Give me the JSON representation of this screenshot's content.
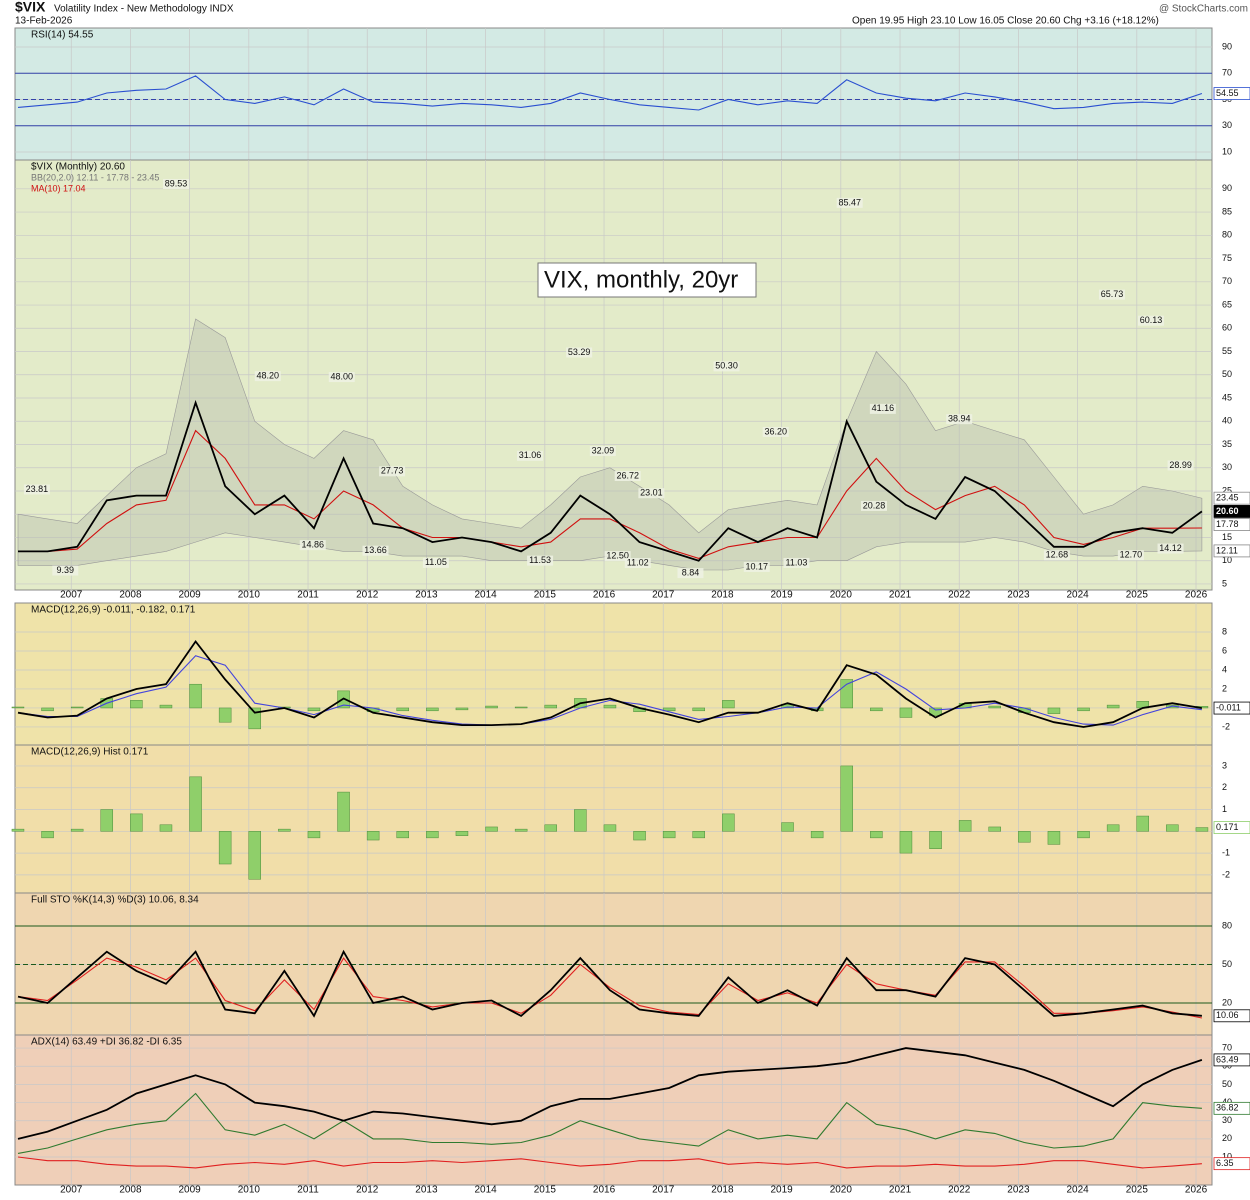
{
  "header": {
    "symbol": "$VIX",
    "name": "Volatility Index - New Methodology INDX",
    "date": "13-Feb-2026",
    "ohlc": "Open 19.95 High 23.10 Low 16.05 Close 20.60 Chg +3.16 (+18.12%)",
    "credit": "@ StockCharts.com"
  },
  "chart_data": [
    {
      "type": "line",
      "title": "RSI(14) 54.55",
      "background": "#d3eae4",
      "xlim": [
        2006.05,
        2026.27
      ],
      "ylim": [
        3.9,
        104.5
      ],
      "yticks": [
        10,
        30,
        50,
        70,
        90
      ],
      "ref_lines": [
        30,
        50,
        70
      ],
      "x": [
        2006.1,
        2006.6,
        2007.1,
        2007.6,
        2008.1,
        2008.6,
        2009.1,
        2009.6,
        2010.1,
        2010.6,
        2011.1,
        2011.6,
        2012.1,
        2012.6,
        2013.1,
        2013.6,
        2014.1,
        2014.6,
        2015.1,
        2015.6,
        2016.1,
        2016.6,
        2017.1,
        2017.6,
        2018.1,
        2018.6,
        2019.1,
        2019.6,
        2020.1,
        2020.6,
        2021.1,
        2021.6,
        2022.1,
        2022.6,
        2023.1,
        2023.6,
        2024.1,
        2024.6,
        2025.1,
        2025.6,
        2026.1
      ],
      "series": [
        {
          "color": "#2a4fd0",
          "tag": "54.55",
          "values": [
            44,
            46,
            48,
            55,
            57,
            58,
            68,
            50,
            47,
            52,
            46,
            58,
            48,
            47,
            45,
            47,
            46,
            44,
            47,
            55,
            50,
            46,
            44,
            42,
            50,
            46,
            49,
            47,
            65,
            55,
            51,
            49,
            55,
            52,
            48,
            43,
            44,
            47,
            48,
            47,
            54.55
          ]
        }
      ]
    },
    {
      "type": "line",
      "title": "$VIX (Monthly) 20.60",
      "annotation": "VIX, monthly, 20yr",
      "background": "#e3ebc9",
      "xlim": [
        2006.05,
        2026.27
      ],
      "ylim": [
        3.7,
        96.2
      ],
      "yticks": [
        5,
        10,
        15,
        20,
        25,
        30,
        35,
        40,
        45,
        50,
        55,
        60,
        65,
        70,
        75,
        80,
        85,
        90
      ],
      "xticks": [
        2007,
        2008,
        2009,
        2010,
        2011,
        2012,
        2013,
        2014,
        2015,
        2016,
        2017,
        2018,
        2019,
        2020,
        2021,
        2022,
        2023,
        2024,
        2025,
        2026
      ],
      "tags": [
        {
          "value": 17.78,
          "label": "17.78"
        }
      ],
      "x": [
        2006.1,
        2006.6,
        2007.1,
        2007.6,
        2008.1,
        2008.6,
        2009.1,
        2009.6,
        2010.1,
        2010.6,
        2011.1,
        2011.6,
        2012.1,
        2012.6,
        2013.1,
        2013.6,
        2014.1,
        2014.6,
        2015.1,
        2015.6,
        2016.1,
        2016.6,
        2017.1,
        2017.6,
        2018.1,
        2018.6,
        2019.1,
        2019.6,
        2020.1,
        2020.6,
        2021.1,
        2021.6,
        2022.1,
        2022.6,
        2023.1,
        2023.6,
        2024.1,
        2024.6,
        2025.1,
        2025.6,
        2026.1
      ],
      "band": {
        "name": "BB(20,2.0) 12.11 - 17.78 - 23.45",
        "color": "#b9bfb0",
        "tag": "23.45",
        "tag_lower": "12.11",
        "upper": [
          20,
          19,
          18,
          24,
          30,
          33,
          62,
          58,
          40,
          35,
          32,
          38,
          36,
          26,
          22,
          19,
          18,
          17,
          22,
          28,
          30,
          26,
          22,
          16,
          21,
          22,
          23,
          22,
          40,
          55,
          48,
          38,
          40,
          38,
          36,
          28,
          20,
          22,
          26,
          25,
          23.45
        ],
        "lower": [
          9,
          9,
          9,
          10,
          11,
          12,
          14,
          16,
          15,
          14,
          13,
          12,
          12,
          11,
          11,
          11,
          10,
          10,
          10,
          10,
          11,
          10,
          9,
          8,
          8,
          9,
          9,
          10,
          10,
          13,
          14,
          14,
          14,
          15,
          14,
          12,
          11,
          11,
          12,
          12,
          12.11
        ]
      },
      "series": [
        {
          "name": "MA(10) 17.04",
          "color": "#d01010",
          "values": [
            12,
            12,
            12.5,
            18,
            22,
            23,
            38,
            32,
            22,
            22,
            19,
            25,
            22,
            17,
            15,
            15,
            14,
            13,
            14,
            19,
            19,
            16,
            12.5,
            10.5,
            13,
            14,
            15,
            15,
            25,
            32,
            25,
            21,
            24,
            26,
            22,
            15,
            13.5,
            15,
            17,
            17,
            17.04
          ]
        },
        {
          "color": "#000000",
          "tag": "20.60",
          "values": [
            12,
            12,
            13,
            23,
            24,
            24,
            44,
            26,
            20,
            24,
            17,
            32,
            18,
            17,
            14,
            15,
            14,
            12,
            16,
            24,
            20,
            14,
            12,
            10,
            17,
            14,
            17,
            15,
            40,
            27,
            22,
            19,
            28,
            25,
            19,
            13,
            13,
            16,
            17,
            16,
            20.6
          ]
        }
      ],
      "annotations": {
        "x": [
          2006.42,
          2006.9,
          2008.77,
          2010.32,
          2011.08,
          2011.57,
          2012.14,
          2012.42,
          2013.16,
          2014.75,
          2014.92,
          2015.58,
          2015.98,
          2016.23,
          2016.4,
          2016.57,
          2016.8,
          2017.46,
          2018.07,
          2018.58,
          2018.9,
          2019.25,
          2020.15,
          2020.56,
          2020.71,
          2022.0,
          2023.65,
          2024.58,
          2024.9,
          2025.24,
          2025.57,
          2025.74
        ],
        "values": [
          23.81,
          9.39,
          89.53,
          48.2,
          14.86,
          48,
          13.66,
          27.73,
          11.05,
          31.06,
          11.53,
          53.29,
          32.09,
          12.5,
          26.72,
          11.02,
          23.01,
          8.84,
          50.3,
          10.17,
          36.2,
          11.03,
          85.47,
          20.28,
          41.16,
          38.94,
          12.68,
          65.73,
          12.7,
          60.13,
          14.12,
          28.99
        ],
        "value_labels": [
          "23.81",
          "9.39",
          "89.53",
          "48.20",
          "14.86",
          "48.00",
          "13.66",
          "27.73",
          "11.05",
          "31.06",
          "11.53",
          "53.29",
          "32.09",
          "12.50",
          "26.72",
          "11.02",
          "23.01",
          "8.84",
          "50.30",
          "10.17",
          "36.20",
          "11.03",
          "85.47",
          "20.28",
          "41.16",
          "38.94",
          "12.68",
          "65.73",
          "12.70",
          "60.13",
          "14.12",
          "28.99"
        ]
      }
    },
    {
      "type": "line",
      "title": "MACD(12,26,9) -0.011, -0.182, 0.171",
      "background": "#efe3a9",
      "xlim": [
        2006.05,
        2026.27
      ],
      "ylim": [
        -3.9,
        11.05
      ],
      "yticks": [
        -2,
        0,
        2,
        4,
        6,
        8
      ],
      "x": [
        2006.1,
        2006.6,
        2007.1,
        2007.6,
        2008.1,
        2008.6,
        2009.1,
        2009.6,
        2010.1,
        2010.6,
        2011.1,
        2011.6,
        2012.1,
        2012.6,
        2013.1,
        2013.6,
        2014.1,
        2014.6,
        2015.1,
        2015.6,
        2016.1,
        2016.6,
        2017.1,
        2017.6,
        2018.1,
        2018.6,
        2019.1,
        2019.6,
        2020.1,
        2020.6,
        2021.1,
        2021.6,
        2022.1,
        2022.6,
        2023.1,
        2023.6,
        2024.1,
        2024.6,
        2025.1,
        2025.6,
        2026.1
      ],
      "series": [
        {
          "type": "bar",
          "color": "#8fcf6a",
          "values": [
            0.1,
            -0.3,
            0.1,
            1,
            0.8,
            0.3,
            2.5,
            -1.5,
            -2.2,
            0.1,
            -0.3,
            1.8,
            -0.4,
            -0.3,
            -0.3,
            -0.2,
            0.2,
            0.1,
            0.3,
            1,
            0.3,
            -0.4,
            -0.3,
            -0.3,
            0.8,
            0,
            0.4,
            -0.3,
            3,
            -0.3,
            -1,
            -0.8,
            0.5,
            0.2,
            -0.5,
            -0.6,
            -0.3,
            0.3,
            0.7,
            0.3,
            0.171
          ]
        },
        {
          "color": "#4444dd",
          "values": [
            -0.5,
            -0.9,
            -0.9,
            0.5,
            1.5,
            2.2,
            5.5,
            4.5,
            0.5,
            0,
            -0.7,
            0.3,
            0,
            -0.8,
            -1.3,
            -1.7,
            -1.8,
            -1.7,
            -1.2,
            0,
            0.8,
            0.4,
            -0.4,
            -1.2,
            -0.9,
            -0.5,
            0.1,
            0,
            2.5,
            3.8,
            2,
            -0.2,
            0,
            0.5,
            0,
            -1,
            -1.7,
            -1.8,
            -0.7,
            0.2,
            -0.182
          ]
        },
        {
          "color": "#000000",
          "tag": "-0.011",
          "values": [
            -0.5,
            -1,
            -0.8,
            1,
            2,
            2.5,
            7,
            3,
            -0.5,
            0,
            -1,
            1,
            -0.5,
            -1,
            -1.5,
            -1.8,
            -1.8,
            -1.7,
            -1,
            0.5,
            1,
            0,
            -0.7,
            -1.5,
            -0.5,
            -0.5,
            0.5,
            -0.3,
            4.5,
            3.5,
            1,
            -1,
            0.5,
            0.7,
            -0.5,
            -1.5,
            -2,
            -1.5,
            0,
            0.5,
            -0.011
          ]
        }
      ]
    },
    {
      "type": "bar",
      "title": "MACD(12,26,9) Hist 0.171",
      "background": "#f1dea9",
      "xlim": [
        2006.05,
        2026.27
      ],
      "ylim": [
        -2.83,
        3.96
      ],
      "yticks": [
        -2,
        -1,
        0,
        1,
        2,
        3
      ],
      "x": [
        2006.1,
        2006.6,
        2007.1,
        2007.6,
        2008.1,
        2008.6,
        2009.1,
        2009.6,
        2010.1,
        2010.6,
        2011.1,
        2011.6,
        2012.1,
        2012.6,
        2013.1,
        2013.6,
        2014.1,
        2014.6,
        2015.1,
        2015.6,
        2016.1,
        2016.6,
        2017.1,
        2017.6,
        2018.1,
        2018.6,
        2019.1,
        2019.6,
        2020.1,
        2020.6,
        2021.1,
        2021.6,
        2022.1,
        2022.6,
        2023.1,
        2023.6,
        2024.1,
        2024.6,
        2025.1,
        2025.6,
        2026.1
      ],
      "series": [
        {
          "color": "#8fcf6a",
          "tag": "0.171",
          "values": [
            0.1,
            -0.3,
            0.1,
            1,
            0.8,
            0.3,
            2.5,
            -1.5,
            -2.2,
            0.1,
            -0.3,
            1.8,
            -0.4,
            -0.3,
            -0.3,
            -0.2,
            0.2,
            0.1,
            0.3,
            1,
            0.3,
            -0.4,
            -0.3,
            -0.3,
            0.8,
            0,
            0.4,
            -0.3,
            3,
            -0.3,
            -1,
            -0.8,
            0.5,
            0.2,
            -0.5,
            -0.6,
            -0.3,
            0.3,
            0.7,
            0.3,
            0.171
          ]
        }
      ]
    },
    {
      "type": "line",
      "title": "Full STO %K(14,3) %D(3) 10.06, 8.34",
      "background": "#efd6b0",
      "xlim": [
        2006.05,
        2026.27
      ],
      "ylim": [
        -4.9,
        105.7
      ],
      "yticks": [
        20,
        50,
        80
      ],
      "ref_lines": [
        20,
        50,
        80
      ],
      "x": [
        2006.1,
        2006.6,
        2007.1,
        2007.6,
        2008.1,
        2008.6,
        2009.1,
        2009.6,
        2010.1,
        2010.6,
        2011.1,
        2011.6,
        2012.1,
        2012.6,
        2013.1,
        2013.6,
        2014.1,
        2014.6,
        2015.1,
        2015.6,
        2016.1,
        2016.6,
        2017.1,
        2017.6,
        2018.1,
        2018.6,
        2019.1,
        2019.6,
        2020.1,
        2020.6,
        2021.1,
        2021.6,
        2022.1,
        2022.6,
        2023.1,
        2023.6,
        2024.1,
        2024.6,
        2025.1,
        2025.6,
        2026.1
      ],
      "series": [
        {
          "color": "#e02020",
          "values": [
            25,
            22,
            38,
            55,
            48,
            38,
            55,
            22,
            14,
            38,
            15,
            55,
            25,
            22,
            17,
            20,
            20,
            12,
            26,
            50,
            32,
            18,
            13,
            11,
            35,
            22,
            28,
            20,
            50,
            35,
            30,
            26,
            52,
            52,
            33,
            12,
            12,
            14,
            17,
            13,
            8.34
          ]
        },
        {
          "color": "#000000",
          "tag": "10.06",
          "values": [
            25,
            20,
            40,
            60,
            45,
            35,
            60,
            15,
            12,
            45,
            10,
            60,
            20,
            25,
            15,
            20,
            22,
            10,
            30,
            55,
            30,
            15,
            12,
            10,
            40,
            20,
            30,
            18,
            55,
            30,
            30,
            25,
            55,
            50,
            30,
            10,
            12,
            15,
            18,
            12,
            10.06
          ]
        }
      ]
    },
    {
      "type": "line",
      "title": "ADX(14) 63.49 +DI 36.82 -DI 6.35",
      "background": "#efcfb8",
      "xlim": [
        2006.05,
        2026.27
      ],
      "ylim": [
        -5.4,
        77.2
      ],
      "yticks": [
        10,
        20,
        30,
        40,
        50,
        60,
        70
      ],
      "xticks": [
        2007,
        2008,
        2009,
        2010,
        2011,
        2012,
        2013,
        2014,
        2015,
        2016,
        2017,
        2018,
        2019,
        2020,
        2021,
        2022,
        2023,
        2024,
        2025,
        2026
      ],
      "x": [
        2006.1,
        2006.6,
        2007.1,
        2007.6,
        2008.1,
        2008.6,
        2009.1,
        2009.6,
        2010.1,
        2010.6,
        2011.1,
        2011.6,
        2012.1,
        2012.6,
        2013.1,
        2013.6,
        2014.1,
        2014.6,
        2015.1,
        2015.6,
        2016.1,
        2016.6,
        2017.1,
        2017.6,
        2018.1,
        2018.6,
        2019.1,
        2019.6,
        2020.1,
        2020.6,
        2021.1,
        2021.6,
        2022.1,
        2022.6,
        2023.1,
        2023.6,
        2024.1,
        2024.6,
        2025.1,
        2025.6,
        2026.1
      ],
      "series": [
        {
          "color": "#e02020",
          "tag": "6.35",
          "values": [
            10,
            8,
            8,
            6,
            5,
            5,
            4,
            6,
            7,
            6,
            8,
            5,
            7,
            7,
            8,
            7,
            8,
            9,
            7,
            5,
            6,
            8,
            8,
            9,
            6,
            7,
            6,
            7,
            4,
            5,
            5,
            6,
            5,
            5,
            6,
            8,
            8,
            6,
            4,
            5,
            6.35
          ]
        },
        {
          "color": "#2f7a2f",
          "tag": "36.82",
          "values": [
            12,
            15,
            20,
            25,
            28,
            30,
            45,
            25,
            22,
            28,
            20,
            30,
            20,
            20,
            18,
            18,
            17,
            18,
            22,
            30,
            25,
            20,
            18,
            16,
            25,
            20,
            22,
            20,
            40,
            28,
            25,
            20,
            25,
            23,
            18,
            15,
            16,
            20,
            40,
            38,
            36.82
          ]
        },
        {
          "color": "#000000",
          "tag": "63.49",
          "values": [
            20,
            24,
            30,
            36,
            45,
            50,
            55,
            50,
            40,
            38,
            35,
            30,
            35,
            34,
            32,
            30,
            28,
            30,
            38,
            42,
            42,
            45,
            48,
            55,
            57,
            58,
            59,
            60,
            62,
            66,
            70,
            68,
            66,
            62,
            58,
            52,
            45,
            38,
            50,
            58,
            63.49
          ]
        }
      ]
    }
  ]
}
